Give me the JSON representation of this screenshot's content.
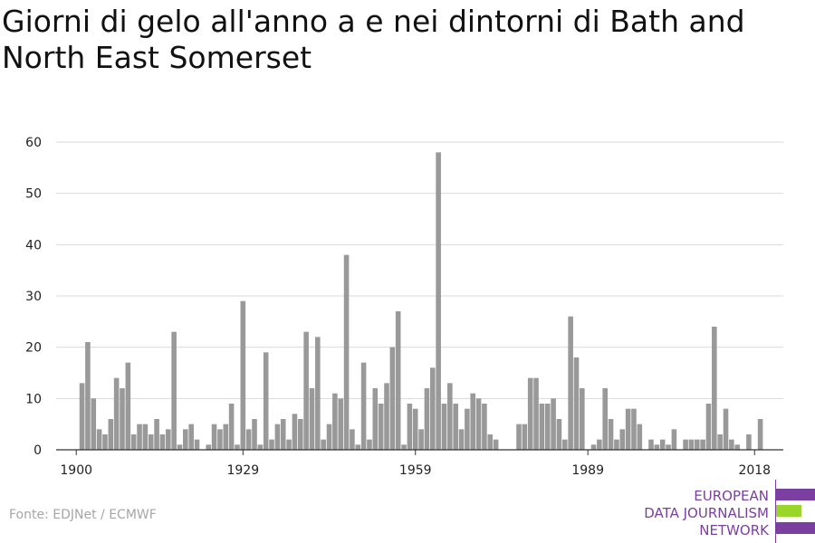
{
  "title": "Giorni di gelo all'anno a e nei dintorni di Bath and North East Somerset",
  "source": "Fonte: EDJNet / ECMWF",
  "logo": {
    "line1": "EUROPEAN",
    "line2": "DATA JOURNALISM",
    "line3": "NETWORK",
    "colors": {
      "purple": "#7a3fa0",
      "green": "#9ad62a"
    }
  },
  "colors": {
    "bar": "#999999",
    "grid": "#d9d9d9",
    "axis": "#333333"
  },
  "chart_data": {
    "type": "bar",
    "title": "Giorni di gelo all'anno a e nei dintorni di Bath and North East Somerset",
    "xlabel": "",
    "ylabel": "",
    "ylim": [
      0,
      60
    ],
    "yticks": [
      0,
      10,
      20,
      30,
      40,
      50,
      60
    ],
    "xticks": [
      1900,
      1929,
      1959,
      1989,
      2018
    ],
    "grid": true,
    "x": [
      1900,
      1901,
      1902,
      1903,
      1904,
      1905,
      1906,
      1907,
      1908,
      1909,
      1910,
      1911,
      1912,
      1913,
      1914,
      1915,
      1916,
      1917,
      1918,
      1919,
      1920,
      1921,
      1922,
      1923,
      1924,
      1925,
      1926,
      1927,
      1928,
      1929,
      1930,
      1931,
      1932,
      1933,
      1934,
      1935,
      1936,
      1937,
      1938,
      1939,
      1940,
      1941,
      1942,
      1943,
      1944,
      1945,
      1946,
      1947,
      1948,
      1949,
      1950,
      1951,
      1952,
      1953,
      1954,
      1955,
      1956,
      1957,
      1958,
      1959,
      1960,
      1961,
      1962,
      1963,
      1964,
      1965,
      1966,
      1967,
      1968,
      1969,
      1970,
      1971,
      1972,
      1973,
      1974,
      1975,
      1976,
      1977,
      1978,
      1979,
      1980,
      1981,
      1982,
      1983,
      1984,
      1985,
      1986,
      1987,
      1988,
      1989,
      1990,
      1991,
      1992,
      1993,
      1994,
      1995,
      1996,
      1997,
      1998,
      1999,
      2000,
      2001,
      2002,
      2003,
      2004,
      2005,
      2006,
      2007,
      2008,
      2009,
      2010,
      2011,
      2012,
      2013,
      2014,
      2015,
      2016,
      2017,
      2018,
      2019,
      2020
    ],
    "values": [
      0,
      13,
      21,
      10,
      4,
      3,
      6,
      14,
      12,
      17,
      3,
      5,
      5,
      3,
      6,
      3,
      4,
      23,
      1,
      4,
      5,
      2,
      0,
      1,
      5,
      4,
      5,
      9,
      1,
      29,
      4,
      6,
      1,
      19,
      2,
      5,
      6,
      2,
      7,
      6,
      23,
      12,
      22,
      2,
      5,
      11,
      10,
      38,
      4,
      1,
      17,
      2,
      12,
      9,
      13,
      20,
      27,
      1,
      9,
      8,
      4,
      12,
      16,
      58,
      9,
      13,
      9,
      4,
      8,
      11,
      10,
      9,
      3,
      2,
      0,
      0,
      0,
      5,
      5,
      14,
      14,
      9,
      9,
      10,
      6,
      2,
      26,
      18,
      12,
      0,
      1,
      2,
      12,
      6,
      2,
      4,
      8,
      8,
      5,
      0,
      2,
      1,
      2,
      1,
      4,
      0,
      2,
      2,
      2,
      2,
      9,
      24,
      3,
      8,
      2,
      1,
      0,
      3,
      0,
      6,
      0
    ]
  }
}
